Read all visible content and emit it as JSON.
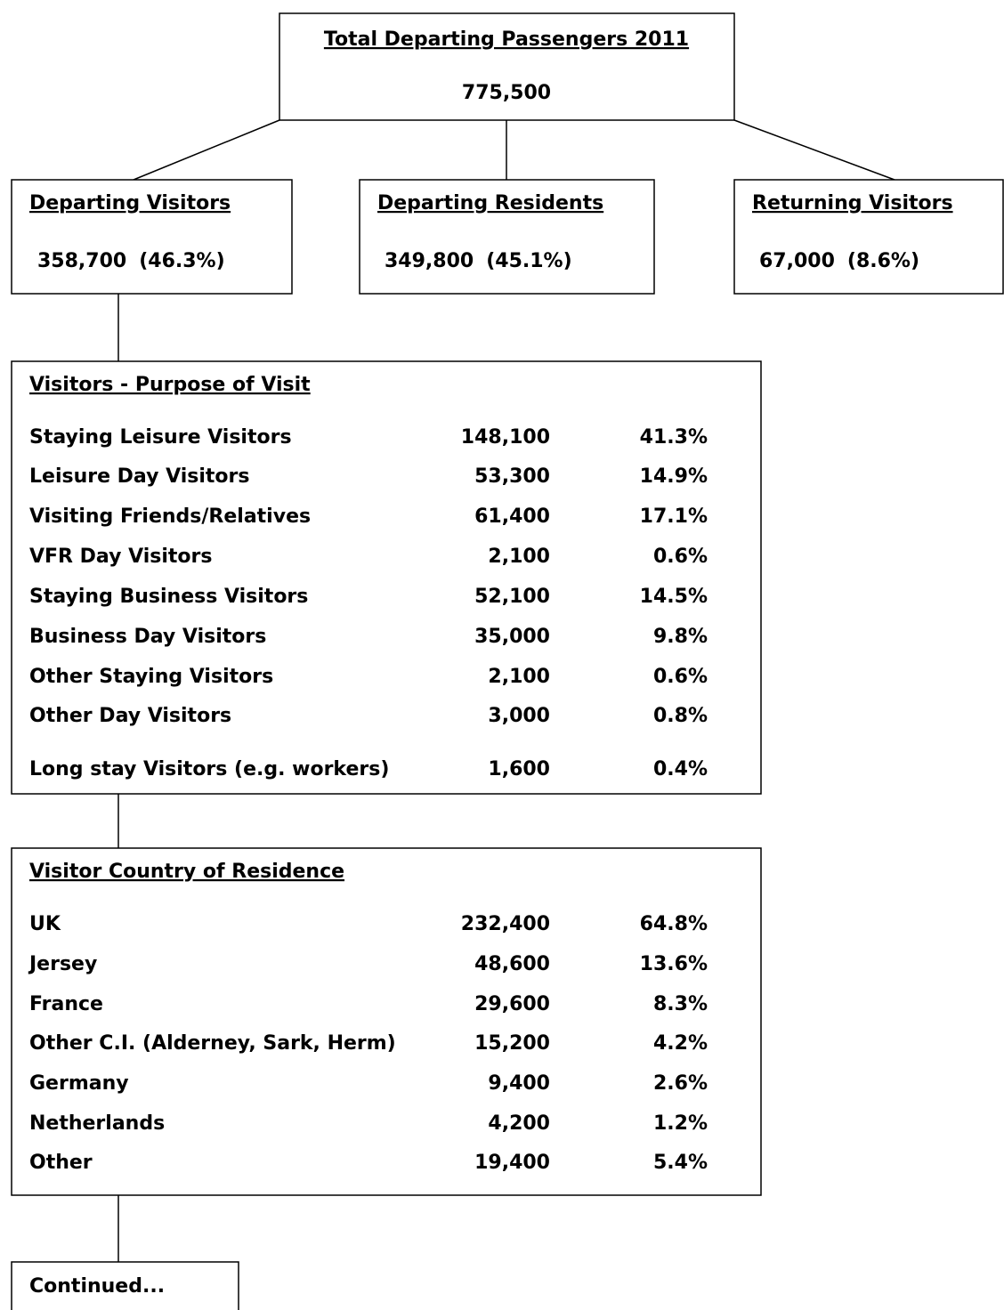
{
  "top": {
    "title": "Total Departing Passengers 2011",
    "value": "775,500"
  },
  "branches": [
    {
      "title": "Departing Visitors",
      "value": "358,700",
      "percent": "(46.3%)"
    },
    {
      "title": "Departing Residents",
      "value": "349,800",
      "percent": "(45.1%)"
    },
    {
      "title": "Returning Visitors",
      "value": "67,000",
      "percent": "(8.6%)"
    }
  ],
  "purpose": {
    "title": "Visitors - Purpose of Visit",
    "rows": [
      [
        "Staying Leisure Visitors",
        "148,100",
        "41.3%"
      ],
      [
        "Leisure Day Visitors",
        "53,300",
        "14.9%"
      ],
      [
        "Visiting Friends/Relatives",
        "61,400",
        "17.1%"
      ],
      [
        "VFR Day Visitors",
        "2,100",
        "0.6%"
      ],
      [
        "Staying Business Visitors",
        "52,100",
        "14.5%"
      ],
      [
        "Business Day Visitors",
        "35,000",
        "9.8%"
      ],
      [
        "Other Staying Visitors",
        "2,100",
        "0.6%"
      ],
      [
        "Other Day Visitors",
        "3,000",
        "0.8%"
      ],
      [
        "Long stay Visitors (e.g. workers)",
        "1,600",
        "0.4%"
      ]
    ]
  },
  "country": {
    "title": "Visitor Country of Residence",
    "rows": [
      [
        "UK",
        "232,400",
        "64.8%"
      ],
      [
        "Jersey",
        "48,600",
        "13.6%"
      ],
      [
        "France",
        "29,600",
        "8.3%"
      ],
      [
        "Other C.I. (Alderney, Sark, Herm)",
        "15,200",
        "4.2%"
      ],
      [
        "Germany",
        "9,400",
        "2.6%"
      ],
      [
        "Netherlands",
        "4,200",
        "1.2%"
      ],
      [
        "Other",
        "19,400",
        "5.4%"
      ]
    ]
  },
  "footer": "Continued..."
}
